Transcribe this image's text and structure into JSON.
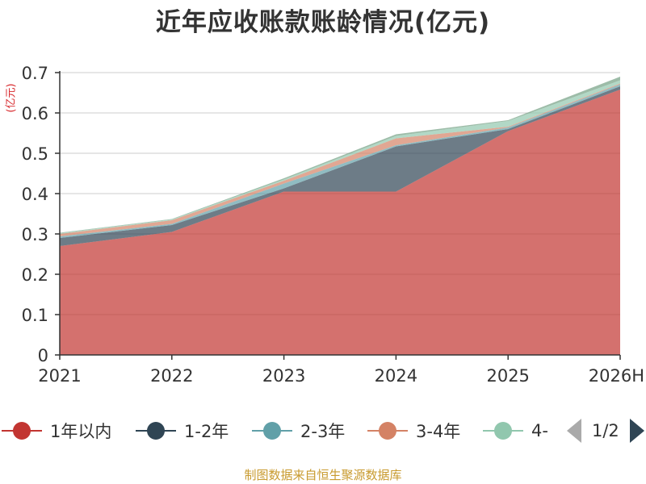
{
  "chart_data": {
    "type": "area",
    "stacked": true,
    "title": "近年应收账款账龄情况(亿元)",
    "ylabel": "(亿元)",
    "xlabel": "",
    "categories": [
      "2021",
      "2022",
      "2023",
      "2024",
      "2025",
      "2026H"
    ],
    "ylim": [
      0,
      0.7
    ],
    "yticks": [
      "0",
      "0.1",
      "0.2",
      "0.3",
      "0.4",
      "0.5",
      "0.6",
      "0.7"
    ],
    "grid": true,
    "series": [
      {
        "name": "1年以内",
        "color": "#c23531",
        "values": [
          0.27,
          0.305,
          0.405,
          0.405,
          0.555,
          0.658
        ]
      },
      {
        "name": "1-2年",
        "color": "#2f4554",
        "values": [
          0.02,
          0.017,
          0.008,
          0.112,
          0.005,
          0.008
        ]
      },
      {
        "name": "2-3年",
        "color": "#61a0a8",
        "values": [
          0.004,
          0.003,
          0.012,
          0.003,
          0.004,
          0.005
        ]
      },
      {
        "name": "3-4年",
        "color": "#d48265",
        "values": [
          0.006,
          0.009,
          0.007,
          0.017,
          0.002,
          0.002
        ]
      },
      {
        "name": "4-",
        "color": "#91c7ae",
        "values": [
          0.002,
          0.002,
          0.003,
          0.006,
          0.014,
          0.008
        ]
      },
      {
        "name": "",
        "color": "#749f83",
        "values": [
          0.001,
          0.001,
          0.003,
          0.004,
          0.002,
          0.009
        ]
      }
    ],
    "legend_placement": "bottom"
  },
  "legend": {
    "page_text": "1/2"
  },
  "footer": {
    "source": "制图数据来自恒生聚源数据库"
  }
}
